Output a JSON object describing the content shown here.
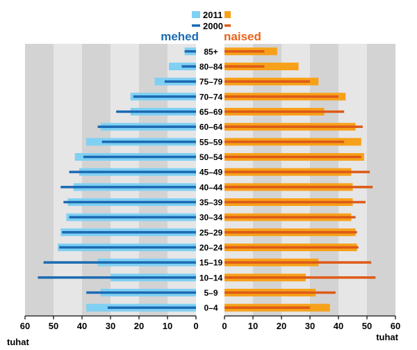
{
  "chart_data": {
    "type": "bar",
    "title": "",
    "legend": {
      "items": [
        {
          "label": "2011",
          "style": "bar"
        },
        {
          "label": "2000",
          "style": "line"
        }
      ],
      "placement": "top-center"
    },
    "left_label": "mehed",
    "right_label": "naised",
    "x_unit_label": "tuhat",
    "x_ticks_left": [
      "60",
      "50",
      "40",
      "30",
      "20",
      "10",
      "0"
    ],
    "x_ticks_right": [
      "0",
      "10",
      "20",
      "30",
      "40",
      "50",
      "60"
    ],
    "xlim": [
      0,
      60
    ],
    "age_groups": [
      "85+",
      "80–84",
      "75–79",
      "70–74",
      "65–69",
      "60–64",
      "55–59",
      "50–54",
      "45–49",
      "40–44",
      "35–39",
      "30–34",
      "25–29",
      "20–24",
      "15–19",
      "10–14",
      "5–9",
      "0–4"
    ],
    "series": [
      {
        "name": "2011",
        "group": "mehed",
        "values": [
          4,
          9.5,
          14.5,
          23,
          23,
          33.5,
          38.5,
          42.5,
          41,
          43,
          45,
          45.5,
          47.5,
          48.5,
          34.5,
          30,
          33.5,
          38.5
        ]
      },
      {
        "name": "2000",
        "group": "mehed",
        "values": [
          4,
          5,
          11,
          22,
          28,
          34.5,
          33,
          39.5,
          44.5,
          47.5,
          46.5,
          44.5,
          47,
          48,
          53.5,
          55.5,
          38.5,
          31
        ]
      },
      {
        "name": "2011",
        "group": "naised",
        "values": [
          18.5,
          26,
          33,
          42.5,
          35,
          46,
          48,
          49,
          44.5,
          45,
          45,
          44.5,
          46,
          46.5,
          33,
          28.5,
          32,
          37
        ]
      },
      {
        "name": "2000",
        "group": "naised",
        "values": [
          14,
          14,
          30,
          40,
          42,
          48.5,
          42,
          48,
          51,
          52,
          49.5,
          46,
          46.5,
          47,
          51.5,
          53,
          39,
          30
        ]
      }
    ],
    "colors": {
      "bg_dark": "#d3d3d3",
      "bg_light": "#e6e6e6",
      "male_2011": "#7fd0f3",
      "male_2000": "#1b6ab3",
      "female_2011": "#f7a11a",
      "female_2000": "#dd5a16",
      "male_text": "#1b6ab3",
      "female_text": "#e8631b",
      "axis": "#000000",
      "grid_line": "#9a9a9a"
    },
    "grid": true
  }
}
